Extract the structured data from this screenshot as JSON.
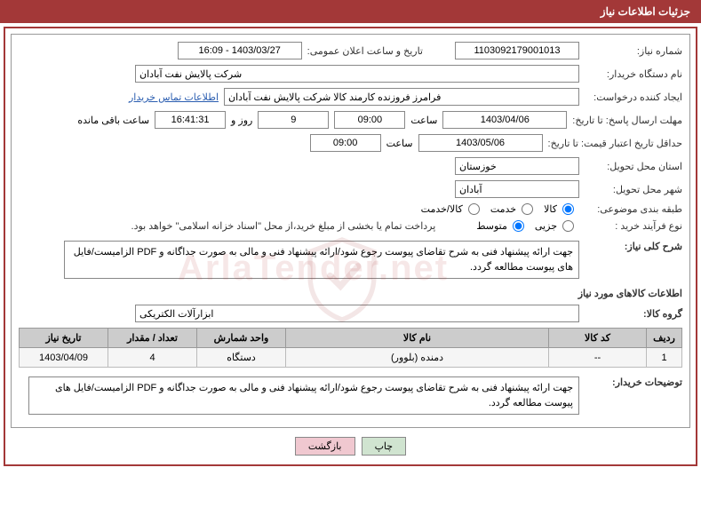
{
  "header": {
    "title": "جزئیات اطلاعات نیاز"
  },
  "fields": {
    "need_no_label": "شماره نیاز:",
    "need_no": "1103092179001013",
    "announce_label": "تاریخ و ساعت اعلان عمومی:",
    "announce_val": "1403/03/27 - 16:09",
    "buyer_org_label": "نام دستگاه خریدار:",
    "buyer_org": "شرکت پالایش نفت آبادان",
    "requester_label": "ایجاد کننده درخواست:",
    "requester": "فرامرز فروزنده کارمند کالا شرکت پالایش نفت آبادان",
    "contact_link": "اطلاعات تماس خریدار",
    "deadline_label": "مهلت ارسال پاسخ: تا تاریخ:",
    "deadline_date": "1403/04/06",
    "time_label": "ساعت",
    "deadline_time": "09:00",
    "days_remain": "9",
    "days_and": "روز و",
    "time_remain": "16:41:31",
    "remain_suffix": "ساعت باقی مانده",
    "validity_label": "حداقل تاریخ اعتبار قیمت: تا تاریخ:",
    "validity_date": "1403/05/06",
    "validity_time": "09:00",
    "province_label": "استان محل تحویل:",
    "province": "خوزستان",
    "city_label": "شهر محل تحویل:",
    "city": "آبادان",
    "category_label": "طبقه بندی موضوعی:",
    "cat_goods": "کالا",
    "cat_service": "خدمت",
    "cat_both": "کالا/خدمت",
    "process_label": "نوع فرآیند خرید :",
    "proc_minor": "جزیی",
    "proc_medium": "متوسط",
    "payment_note": "پرداخت تمام یا بخشی از مبلغ خرید،از محل \"اسناد خزانه اسلامی\" خواهد بود.",
    "desc_label": "شرح کلی نیاز:",
    "desc_text": "جهت ارائه پیشنهاد فنی به شرح تقاضای پیوست رجوع شود/ارائه پیشنهاد فنی و مالی به صورت جداگانه و PDF الزامیست/فایل های پیوست مطالعه گردد.",
    "goods_section": "اطلاعات کالاهای مورد نیاز",
    "group_label": "گروه کالا:",
    "group_val": "ابزارآلات الکتریکی",
    "buyer_notes_label": "توضیحات خریدار:",
    "buyer_notes": "جهت ارائه پیشنهاد فنی به شرح تقاضای پیوست رجوع شود/ارائه پیشنهاد فنی و مالی به صورت جداگانه و PDF الزامیست/فایل های پیوست مطالعه گردد."
  },
  "table": {
    "headers": [
      "ردیف",
      "کد کالا",
      "نام کالا",
      "واحد شمارش",
      "تعداد / مقدار",
      "تاریخ نیاز"
    ],
    "col_widths": [
      "40px",
      "110px",
      "auto",
      "100px",
      "100px",
      "100px"
    ],
    "rows": [
      [
        "1",
        "--",
        "دمنده (بلوور)",
        "دستگاه",
        "4",
        "1403/04/09"
      ]
    ]
  },
  "buttons": {
    "print": "چاپ",
    "back": "بازگشت"
  },
  "colors": {
    "header_bg": "#a33838",
    "border": "#a33838",
    "th_bg": "#cccccc",
    "link": "#2a5db0"
  }
}
